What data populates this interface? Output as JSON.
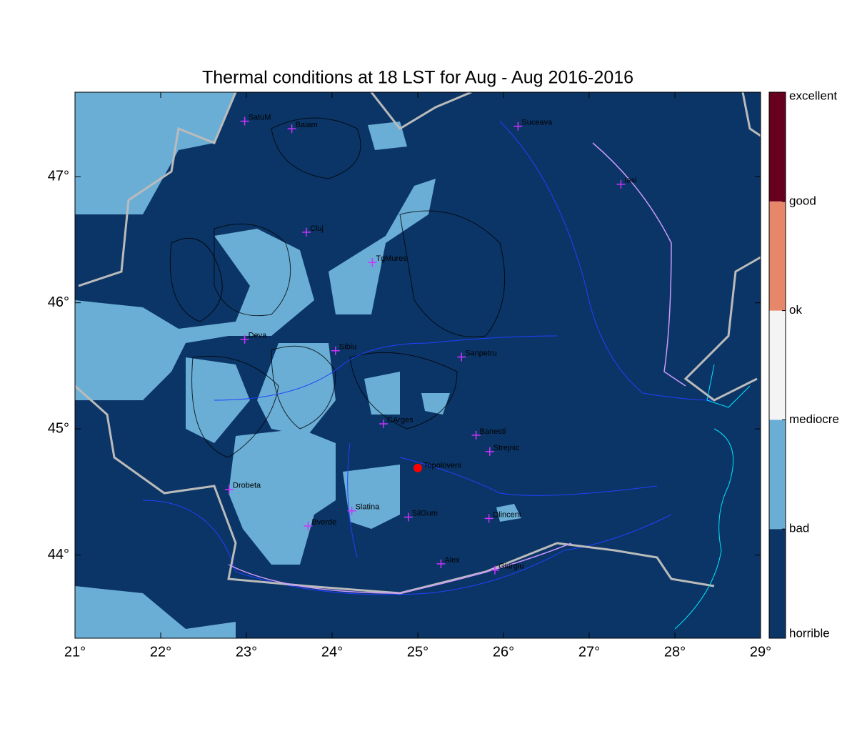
{
  "title": "Thermal conditions at 18 LST for Aug - Aug  2016-2016",
  "map": {
    "xlim": [
      21,
      29
    ],
    "ylim": [
      43.34,
      47.67
    ],
    "xticks": [
      {
        "value": 21,
        "label": "21°"
      },
      {
        "value": 22,
        "label": "22°"
      },
      {
        "value": 23,
        "label": "23°"
      },
      {
        "value": 24,
        "label": "24°"
      },
      {
        "value": 25,
        "label": "25°"
      },
      {
        "value": 26,
        "label": "26°"
      },
      {
        "value": 27,
        "label": "27°"
      },
      {
        "value": 28,
        "label": "28°"
      },
      {
        "value": 29,
        "label": "29°"
      }
    ],
    "yticks": [
      {
        "value": 44,
        "label": "44°"
      },
      {
        "value": 45,
        "label": "45°"
      },
      {
        "value": 46,
        "label": "46°"
      },
      {
        "value": 47,
        "label": "47°"
      }
    ],
    "cities": [
      {
        "name": "SatuM",
        "lon": 22.98,
        "lat": 47.44
      },
      {
        "name": "Baiam",
        "lon": 23.53,
        "lat": 47.38
      },
      {
        "name": "Suceava",
        "lon": 26.17,
        "lat": 47.4
      },
      {
        "name": "Iasi",
        "lon": 27.37,
        "lat": 46.94
      },
      {
        "name": "Cluj",
        "lon": 23.7,
        "lat": 46.56
      },
      {
        "name": "TgMures",
        "lon": 24.47,
        "lat": 46.32
      },
      {
        "name": "Deva",
        "lon": 22.98,
        "lat": 45.71
      },
      {
        "name": "Sibiu",
        "lon": 24.04,
        "lat": 45.62
      },
      {
        "name": "Sanpetru",
        "lon": 25.51,
        "lat": 45.57
      },
      {
        "name": "CArges",
        "lon": 24.6,
        "lat": 45.04
      },
      {
        "name": "Banesti",
        "lon": 25.68,
        "lat": 44.95
      },
      {
        "name": "Strejnic",
        "lon": 25.84,
        "lat": 44.82
      },
      {
        "name": "Drobeta",
        "lon": 22.8,
        "lat": 44.52
      },
      {
        "name": "Slatina",
        "lon": 24.23,
        "lat": 44.35
      },
      {
        "name": "SilGum",
        "lon": 24.89,
        "lat": 44.3
      },
      {
        "name": "Bverde",
        "lon": 23.72,
        "lat": 44.23
      },
      {
        "name": "Olinceni",
        "lon": 25.83,
        "lat": 44.29
      },
      {
        "name": "Alex",
        "lon": 25.27,
        "lat": 43.93
      },
      {
        "name": "Giurgiu",
        "lon": 25.9,
        "lat": 43.88
      }
    ],
    "station": {
      "name": "Topoloveni",
      "lon": 25.0,
      "lat": 44.69,
      "color": "#ff0000"
    }
  },
  "colorbar": {
    "labels": [
      "horrible",
      "bad",
      "mediocre",
      "ok",
      "good",
      "excellent"
    ],
    "colors": [
      "#0b3566",
      "#6aaed6",
      "#f4f4f4",
      "#e6876a",
      "#67001f"
    ]
  }
}
